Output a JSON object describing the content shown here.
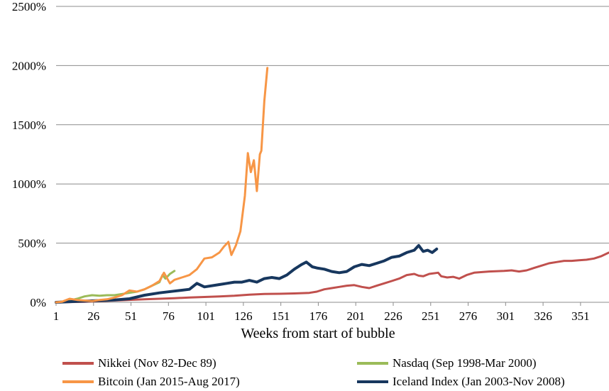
{
  "chart_data": {
    "type": "line",
    "title": "",
    "xlabel": "Weeks from start of bubble",
    "ylabel": "",
    "xlim": [
      1,
      370
    ],
    "ylim": [
      0,
      2500
    ],
    "x_ticks": [
      "1",
      "26",
      "51",
      "76",
      "101",
      "126",
      "151",
      "176",
      "201",
      "226",
      "251",
      "276",
      "301",
      "326",
      "351"
    ],
    "y_ticks": [
      "0%",
      "500%",
      "1000%",
      "1500%",
      "2000%",
      "2500%"
    ],
    "gridlines": "horizontal",
    "series": [
      {
        "name": "Nikkei (Nov 82-Dec 89)",
        "color": "#C0504D",
        "points": [
          [
            1,
            0
          ],
          [
            20,
            5
          ],
          [
            40,
            15
          ],
          [
            60,
            25
          ],
          [
            70,
            30
          ],
          [
            80,
            35
          ],
          [
            90,
            40
          ],
          [
            100,
            45
          ],
          [
            110,
            50
          ],
          [
            120,
            55
          ],
          [
            130,
            65
          ],
          [
            140,
            70
          ],
          [
            150,
            72
          ],
          [
            160,
            75
          ],
          [
            170,
            80
          ],
          [
            175,
            90
          ],
          [
            180,
            110
          ],
          [
            185,
            120
          ],
          [
            190,
            130
          ],
          [
            195,
            140
          ],
          [
            200,
            145
          ],
          [
            205,
            130
          ],
          [
            210,
            120
          ],
          [
            215,
            140
          ],
          [
            220,
            160
          ],
          [
            225,
            180
          ],
          [
            230,
            200
          ],
          [
            235,
            230
          ],
          [
            240,
            240
          ],
          [
            243,
            225
          ],
          [
            246,
            220
          ],
          [
            250,
            240
          ],
          [
            256,
            250
          ],
          [
            258,
            220
          ],
          [
            262,
            210
          ],
          [
            266,
            215
          ],
          [
            270,
            200
          ],
          [
            275,
            230
          ],
          [
            280,
            250
          ],
          [
            290,
            260
          ],
          [
            300,
            265
          ],
          [
            305,
            270
          ],
          [
            310,
            260
          ],
          [
            315,
            270
          ],
          [
            320,
            290
          ],
          [
            325,
            310
          ],
          [
            330,
            330
          ],
          [
            335,
            340
          ],
          [
            340,
            350
          ],
          [
            345,
            350
          ],
          [
            350,
            355
          ],
          [
            355,
            360
          ],
          [
            360,
            370
          ],
          [
            365,
            390
          ],
          [
            370,
            420
          ]
        ]
      },
      {
        "name": "Nasdaq (Sep 1998-Mar 2000)",
        "color": "#9BBB59",
        "points": [
          [
            1,
            0
          ],
          [
            5,
            5
          ],
          [
            10,
            15
          ],
          [
            15,
            30
          ],
          [
            20,
            50
          ],
          [
            25,
            60
          ],
          [
            30,
            55
          ],
          [
            35,
            60
          ],
          [
            40,
            60
          ],
          [
            45,
            70
          ],
          [
            50,
            80
          ],
          [
            55,
            90
          ],
          [
            60,
            110
          ],
          [
            65,
            140
          ],
          [
            70,
            170
          ],
          [
            72,
            230
          ],
          [
            74,
            200
          ],
          [
            77,
            240
          ],
          [
            80,
            265
          ]
        ]
      },
      {
        "name": "Bitcoin (Jan 2015-Aug 2017)",
        "color": "#F79646",
        "points": [
          [
            1,
            0
          ],
          [
            5,
            5
          ],
          [
            10,
            30
          ],
          [
            15,
            20
          ],
          [
            20,
            15
          ],
          [
            25,
            10
          ],
          [
            30,
            20
          ],
          [
            35,
            25
          ],
          [
            40,
            40
          ],
          [
            45,
            60
          ],
          [
            50,
            100
          ],
          [
            55,
            90
          ],
          [
            60,
            110
          ],
          [
            65,
            140
          ],
          [
            70,
            180
          ],
          [
            73,
            250
          ],
          [
            77,
            160
          ],
          [
            80,
            190
          ],
          [
            85,
            210
          ],
          [
            90,
            230
          ],
          [
            95,
            280
          ],
          [
            100,
            370
          ],
          [
            105,
            380
          ],
          [
            110,
            420
          ],
          [
            113,
            470
          ],
          [
            116,
            510
          ],
          [
            118,
            400
          ],
          [
            121,
            480
          ],
          [
            124,
            600
          ],
          [
            127,
            900
          ],
          [
            129,
            1260
          ],
          [
            131,
            1100
          ],
          [
            133,
            1200
          ],
          [
            135,
            940
          ],
          [
            137,
            1250
          ],
          [
            138,
            1280
          ],
          [
            140,
            1700
          ],
          [
            142,
            1980
          ]
        ]
      },
      {
        "name": "Iceland Index (Jan 2003-Nov 2008)",
        "color": "#17375E",
        "points": [
          [
            1,
            0
          ],
          [
            20,
            10
          ],
          [
            40,
            20
          ],
          [
            50,
            30
          ],
          [
            60,
            60
          ],
          [
            70,
            80
          ],
          [
            80,
            95
          ],
          [
            90,
            110
          ],
          [
            95,
            160
          ],
          [
            100,
            130
          ],
          [
            110,
            150
          ],
          [
            115,
            160
          ],
          [
            120,
            170
          ],
          [
            125,
            170
          ],
          [
            130,
            185
          ],
          [
            135,
            170
          ],
          [
            140,
            200
          ],
          [
            145,
            210
          ],
          [
            150,
            200
          ],
          [
            155,
            230
          ],
          [
            160,
            280
          ],
          [
            165,
            320
          ],
          [
            168,
            340
          ],
          [
            172,
            300
          ],
          [
            175,
            290
          ],
          [
            180,
            280
          ],
          [
            185,
            260
          ],
          [
            190,
            250
          ],
          [
            195,
            260
          ],
          [
            200,
            300
          ],
          [
            205,
            320
          ],
          [
            210,
            310
          ],
          [
            215,
            330
          ],
          [
            220,
            350
          ],
          [
            225,
            380
          ],
          [
            230,
            390
          ],
          [
            235,
            420
          ],
          [
            240,
            440
          ],
          [
            243,
            480
          ],
          [
            246,
            430
          ],
          [
            249,
            440
          ],
          [
            252,
            420
          ],
          [
            255,
            450
          ]
        ]
      }
    ]
  }
}
